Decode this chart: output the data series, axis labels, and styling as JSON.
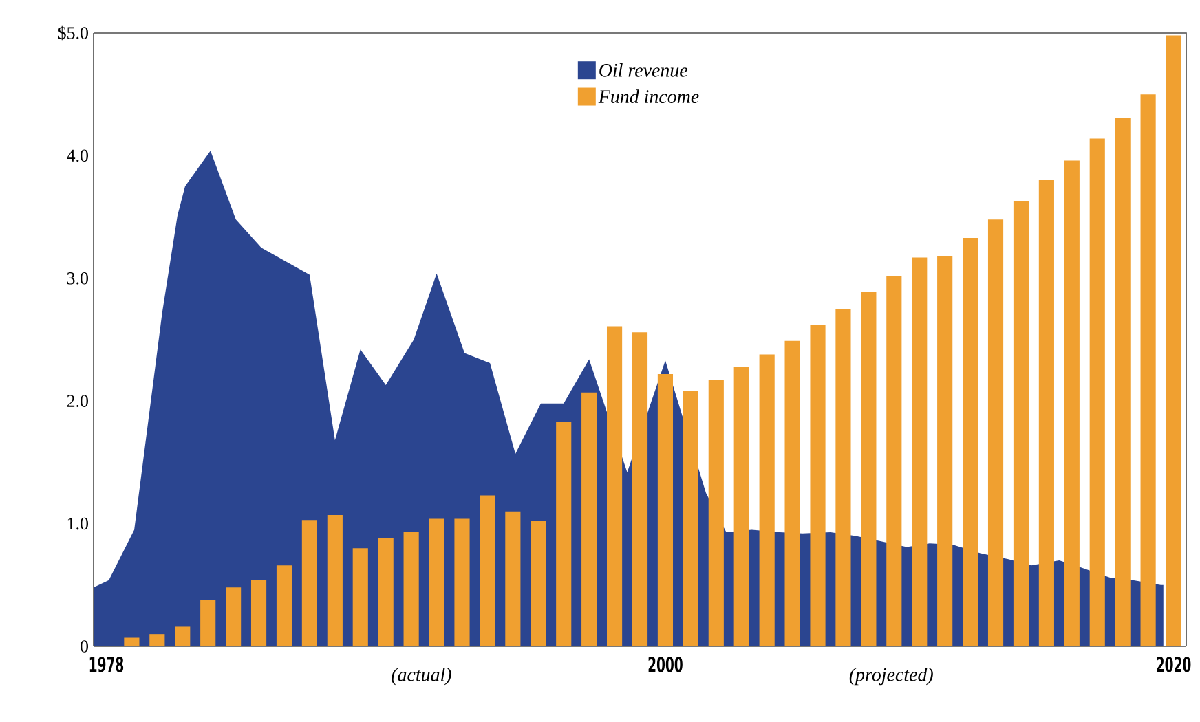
{
  "chart_data": {
    "type": "bar",
    "x": [
      1979,
      1980,
      1981,
      1982,
      1983,
      1984,
      1985,
      1986,
      1987,
      1988,
      1989,
      1990,
      1991,
      1992,
      1993,
      1994,
      1995,
      1996,
      1997,
      1998,
      1999,
      2000,
      2001,
      2002,
      2003,
      2004,
      2005,
      2006,
      2007,
      2008,
      2009,
      2010,
      2011,
      2012,
      2013,
      2014,
      2015,
      2016,
      2017,
      2018,
      2019,
      2020
    ],
    "series": [
      {
        "name": "Oil revenue",
        "type": "area",
        "color": "#2b4590",
        "x": [
          1977.5,
          1978.1,
          1979.1,
          1980.2,
          1980.8,
          1981.1,
          1982.1,
          1983.1,
          1984.1,
          1986.0,
          1987.0,
          1988.0,
          1989.0,
          1990.1,
          1991.0,
          1992.1,
          1993.1,
          1994.1,
          1995.1,
          1996.0,
          1997.0,
          1998.5,
          2000.0,
          2001.6,
          2002.4,
          2003.4,
          2004.5,
          2005.4,
          2006.5,
          2007.5,
          2008.4,
          2009.5,
          2010.4,
          2011.3,
          2012.4,
          2013.5,
          2014.4,
          2015.5,
          2016.4,
          2017.5,
          2018.4,
          2019.5,
          2019.6
        ],
        "values": [
          0.48,
          0.54,
          0.95,
          2.72,
          3.51,
          3.75,
          4.04,
          3.48,
          3.25,
          3.03,
          1.68,
          2.42,
          2.13,
          2.5,
          3.04,
          2.39,
          2.31,
          1.57,
          1.98,
          1.98,
          2.34,
          1.42,
          2.33,
          1.25,
          0.93,
          0.95,
          0.93,
          0.92,
          0.93,
          0.9,
          0.86,
          0.81,
          0.84,
          0.83,
          0.76,
          0.71,
          0.66,
          0.7,
          0.64,
          0.56,
          0.54,
          0.5,
          0.5
        ]
      },
      {
        "name": "Fund income",
        "type": "bar",
        "color": "#f0a030",
        "values": [
          0.07,
          0.1,
          0.16,
          0.38,
          0.48,
          0.54,
          0.66,
          1.03,
          1.07,
          0.8,
          0.88,
          0.93,
          1.04,
          1.04,
          1.23,
          1.1,
          1.02,
          1.83,
          2.07,
          2.61,
          2.56,
          2.22,
          2.08,
          2.17,
          2.28,
          2.38,
          2.49,
          2.62,
          2.75,
          2.89,
          3.02,
          3.17,
          3.18,
          3.33,
          3.48,
          3.63,
          3.8,
          3.96,
          4.14,
          4.31,
          4.5,
          4.98
        ]
      }
    ],
    "xlim": [
      1977.5,
      2020.5
    ],
    "xticks": [
      1978,
      2000,
      2020
    ],
    "ylim": [
      0,
      5
    ],
    "yticks": [
      {
        "value": 0,
        "label": "0"
      },
      {
        "value": 1,
        "label": "1.0"
      },
      {
        "value": 2,
        "label": "2.0"
      },
      {
        "value": 3,
        "label": "3.0"
      },
      {
        "value": 4,
        "label": "4.0"
      },
      {
        "value": 5,
        "label": "$5.0"
      }
    ],
    "legend": "top",
    "annotations": [
      "(actual)",
      "(projected)"
    ]
  }
}
